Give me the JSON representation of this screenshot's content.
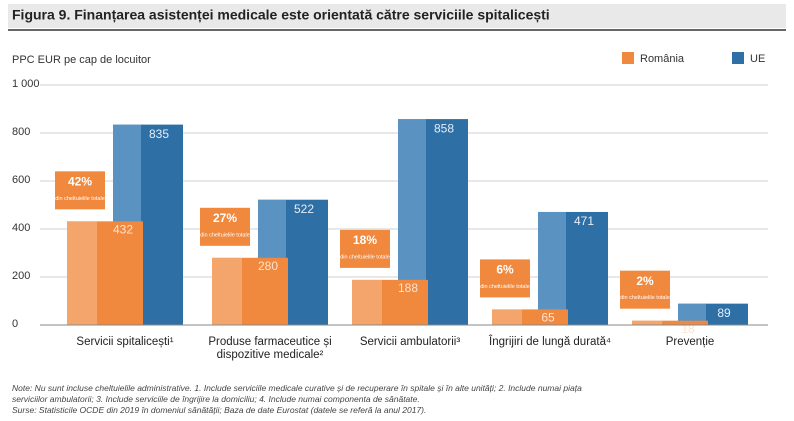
{
  "chart_data": {
    "type": "bar",
    "title": "Figura 9. Finanțarea asistenței medicale este orientată către serviciile spitalicești",
    "y_label": "PPC EUR pe cap de locuitor",
    "categories": [
      "Servicii spitalicești¹",
      "Produse farmaceutice și dispozitive medicale²",
      "Servicii ambulatorii³",
      "Îngrijiri de lungă durată⁴",
      "Prevenție"
    ],
    "series": [
      {
        "name": "România",
        "color": "#f0883e",
        "values": [
          432,
          280,
          188,
          65,
          18
        ]
      },
      {
        "name": "UE",
        "color": "#2e6fa6",
        "values": [
          835,
          522,
          858,
          471,
          89
        ]
      }
    ],
    "share_labels": [
      "42%",
      "27%",
      "18%",
      "6%",
      "2%"
    ],
    "share_note": "din cheltuielile totale",
    "ylim": [
      0,
      1000
    ],
    "yticks": [
      0,
      200,
      400,
      600,
      800,
      {
        "value": 1000,
        "label": "1 000"
      }
    ],
    "grid": true,
    "legend": "top-right",
    "notes": [
      "Note: Nu sunt incluse cheltuielile administrative. 1. Include serviciile medicale curative și de recuperare în spitale și în alte unități; 2. Include numai piața",
      "serviciilor ambulatorii; 3. Include serviciile de îngrijire la domiciliu; 4. Include numai componenta de sănătate.",
      "Surse: Statisticile OCDE din 2019 în domeniul sănătății; Baza de date Eurostat (datele se referă la anul 2017)."
    ]
  }
}
